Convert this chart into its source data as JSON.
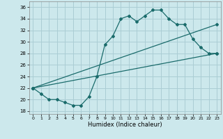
{
  "xlabel": "Humidex (Indice chaleur)",
  "bg_color": "#cce8ec",
  "grid_color": "#aacdd4",
  "line_color": "#1a6b6b",
  "xlim": [
    -0.5,
    23.5
  ],
  "ylim": [
    17.5,
    37
  ],
  "yticks": [
    18,
    20,
    22,
    24,
    26,
    28,
    30,
    32,
    34,
    36
  ],
  "xticks": [
    0,
    1,
    2,
    3,
    4,
    5,
    6,
    7,
    8,
    9,
    10,
    11,
    12,
    13,
    14,
    15,
    16,
    17,
    18,
    19,
    20,
    21,
    22,
    23
  ],
  "line1_x": [
    0,
    1,
    2,
    3,
    4,
    5,
    6,
    7,
    8,
    9,
    10,
    11,
    12,
    13,
    14,
    15,
    16,
    17,
    18,
    19,
    20,
    21,
    22,
    23
  ],
  "line1_y": [
    22,
    21,
    20,
    20,
    19.5,
    19,
    19,
    20.5,
    24,
    29.5,
    31,
    34,
    34.5,
    33.5,
    34.5,
    35.5,
    35.5,
    34,
    33,
    33,
    30.5,
    29,
    28,
    28
  ],
  "line2_x": [
    0,
    23
  ],
  "line2_y": [
    22,
    28
  ],
  "line3_x": [
    0,
    23
  ],
  "line3_y": [
    22,
    33
  ]
}
